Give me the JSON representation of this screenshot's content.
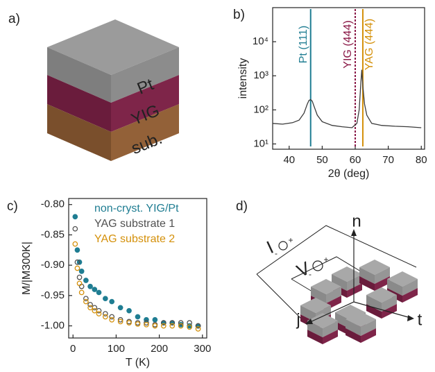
{
  "panel_labels": [
    "a)",
    "b)",
    "c)",
    "d)"
  ],
  "cube": {
    "layers": [
      "Pt",
      "YIG",
      "sub."
    ]
  },
  "chart_data": [
    {
      "type": "line",
      "xlabel": "2θ  (deg)",
      "ylabel": "intensity",
      "yscale": "log",
      "xlim": [
        35,
        81
      ],
      "xticks": [
        40,
        50,
        60,
        70,
        80
      ],
      "ylim": [
        7,
        100000
      ],
      "yticks": [
        {
          "value": 10,
          "label": "10¹"
        },
        {
          "value": 100,
          "label": "10²"
        },
        {
          "value": 1000,
          "label": "10³"
        },
        {
          "value": 10000,
          "label": "10⁴"
        }
      ],
      "x": [
        35,
        38,
        41,
        43,
        44.5,
        45.5,
        46,
        46.5,
        47,
        47.5,
        48.5,
        50,
        53,
        56,
        59,
        60.5,
        61.2,
        61.7,
        62,
        62.3,
        62.8,
        63.5,
        65,
        68,
        72,
        76,
        80
      ],
      "series": [
        {
          "color": "#3a3a3a",
          "values": [
            40,
            38,
            42,
            50,
            80,
            150,
            190,
            200,
            180,
            130,
            70,
            45,
            35,
            32,
            30,
            40,
            100,
            600,
            1500,
            500,
            150,
            70,
            40,
            35,
            33,
            32,
            30
          ]
        }
      ],
      "annotations": [
        {
          "text": "Pt (111)",
          "x": 46.5,
          "color": "#1f7d92",
          "dashed": false,
          "side": "left"
        },
        {
          "text": "YIG (444)",
          "x": 60,
          "color": "#8a1846",
          "dashed": true,
          "side": "left"
        },
        {
          "text": "YAG (444)",
          "x": 62.3,
          "color": "#d4900a",
          "dashed": false,
          "side": "right"
        }
      ]
    },
    {
      "type": "scatter",
      "xlabel": "T (K)",
      "ylabel": "M/|M300K|",
      "xlim": [
        -10,
        310
      ],
      "xticks": [
        0,
        100,
        200,
        300
      ],
      "ylim": [
        -1.02,
        -0.79
      ],
      "yticks": [
        {
          "value": -0.8,
          "label": "-0.80"
        },
        -0.85,
        {
          "value": -0.9,
          "label": "-0.90"
        },
        -0.95,
        {
          "value": -1,
          "label": "-1.00"
        }
      ],
      "x": [
        5,
        10,
        15,
        20,
        30,
        40,
        50,
        60,
        75,
        90,
        110,
        130,
        150,
        170,
        190,
        210,
        230,
        250,
        270,
        290
      ],
      "series": [
        {
          "name": "non-cryst. YIG/Pt",
          "color": "#1f7d92",
          "marker": "filled",
          "values": [
            -0.82,
            -0.875,
            -0.895,
            -0.91,
            -0.925,
            -0.935,
            -0.94,
            -0.945,
            -0.955,
            -0.96,
            -0.97,
            -0.975,
            -0.985,
            -0.99,
            -0.99,
            -0.995,
            -0.995,
            -0.998,
            -1.0,
            -1.0
          ]
        },
        {
          "name": "YAG substrate 1",
          "color": "#505050",
          "marker": "open",
          "values": [
            -0.84,
            -0.895,
            -0.92,
            -0.935,
            -0.955,
            -0.965,
            -0.97,
            -0.975,
            -0.98,
            -0.985,
            -0.99,
            -0.993,
            -0.995,
            -0.995,
            -0.998,
            -0.995,
            -0.995,
            -0.995,
            -0.995,
            -1.0
          ]
        },
        {
          "name": "YAG substrate 2",
          "color": "#d4900a",
          "marker": "open",
          "values": [
            -0.865,
            -0.905,
            -0.93,
            -0.945,
            -0.96,
            -0.97,
            -0.975,
            -0.98,
            -0.985,
            -0.99,
            -0.993,
            -0.995,
            -0.997,
            -0.998,
            -1.0,
            -1.0,
            -1.0,
            -1.0,
            -1.002,
            -1.005
          ]
        }
      ]
    }
  ],
  "device": {
    "axes": [
      "n",
      "j",
      "t"
    ],
    "sources": [
      "I",
      "V"
    ],
    "signs": [
      "-",
      "+",
      "-",
      "+"
    ]
  }
}
